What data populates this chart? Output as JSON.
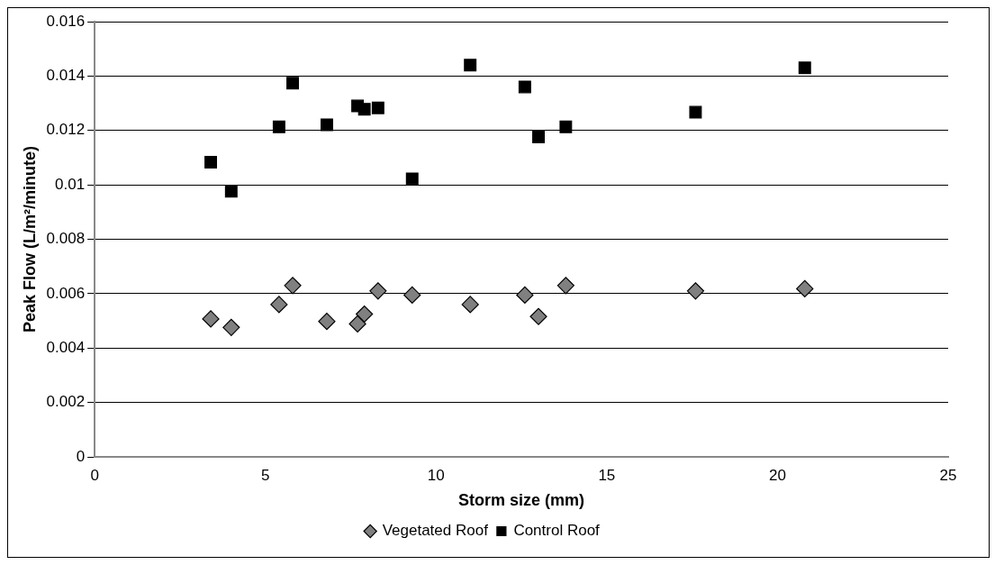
{
  "chart_data": {
    "type": "scatter",
    "xlabel": "Storm size (mm)",
    "ylabel": "Peak Flow (L/m²/minute)",
    "xlim": [
      0,
      25
    ],
    "xticks": [
      0,
      5,
      10,
      15,
      20,
      25
    ],
    "ylim": [
      0,
      0.016
    ],
    "yticks": [
      0,
      0.002,
      0.004,
      0.006,
      0.008,
      0.01,
      0.012,
      0.014,
      0.016
    ],
    "grid": "y",
    "legend": "bottom",
    "x": [
      3.4,
      4.0,
      5.4,
      5.8,
      6.8,
      7.7,
      7.9,
      8.3,
      9.3,
      11.0,
      12.6,
      13.0,
      13.8,
      17.6,
      20.8
    ],
    "series": [
      {
        "name": "Vegetated Roof",
        "color": "#808080",
        "marker": "diamond",
        "values": [
          0.00507,
          0.00476,
          0.0056,
          0.0063,
          0.00498,
          0.00489,
          0.00525,
          0.0061,
          0.00595,
          0.0056,
          0.00595,
          0.00516,
          0.0063,
          0.0061,
          0.00618
        ]
      },
      {
        "name": "Control Roof",
        "color": "#000000",
        "marker": "square",
        "values": [
          0.01083,
          0.00976,
          0.01213,
          0.01374,
          0.01221,
          0.0129,
          0.01278,
          0.01283,
          0.01022,
          0.0144,
          0.0136,
          0.01176,
          0.01213,
          0.01267,
          0.0143
        ]
      }
    ]
  }
}
